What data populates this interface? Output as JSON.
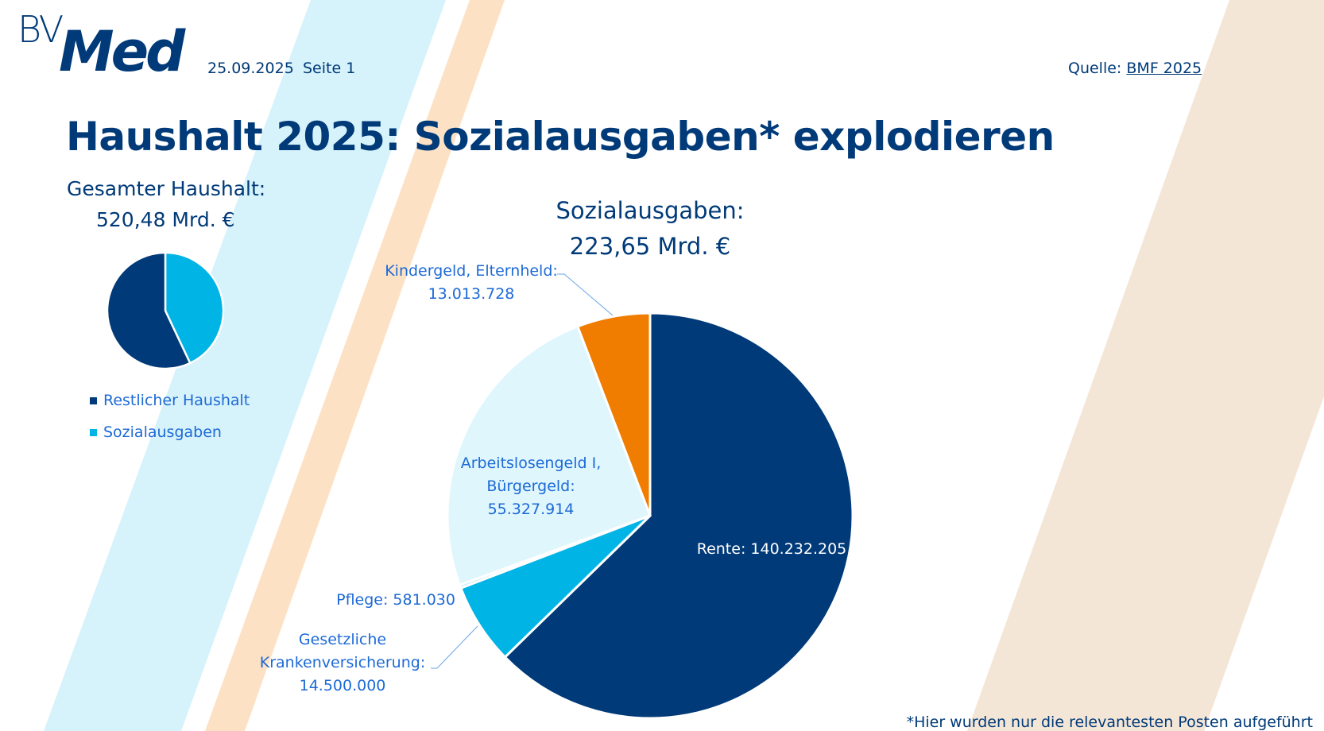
{
  "header": {
    "logo_text_top": "BV",
    "logo_text_main": "Med",
    "date": "25.09.2025",
    "page": "Seite 1",
    "source_label": "Quelle:",
    "source_link": "BMF 2025"
  },
  "title": "Haushalt 2025: Sozialausgaben* explodieren",
  "footnote": "*Hier wurden nur die relevantesten Posten aufgeführt",
  "colors": {
    "dark": "#003a78",
    "cyan": "#00b4e6",
    "light": "#dff6fd",
    "orange": "#f07d00",
    "label": "#1d6ad6"
  },
  "chart_data": [
    {
      "type": "pie",
      "title_line1": "Gesamter Haushalt:",
      "title_line2": "520,48 Mrd. €",
      "unit": "Mrd. €",
      "slices": [
        {
          "name": "Sozialausgaben",
          "value": 223.65,
          "color": "#00b4e6"
        },
        {
          "name": "Restlicher Haushalt",
          "value": 296.83,
          "color": "#003a78"
        }
      ],
      "legend": [
        "Restlicher Haushalt",
        "Sozialausgaben"
      ],
      "legend_position": "bottom-left"
    },
    {
      "type": "pie",
      "title_line1": "Sozialausgaben:",
      "title_line2": "223,65 Mrd. €",
      "slices": [
        {
          "name": "Rente",
          "label": "Rente: 140.232.205",
          "value": 140232205,
          "color": "#003a78"
        },
        {
          "name": "Gesetzliche Krankenversicherung",
          "label_lines": [
            "Gesetzliche",
            "Krankenversicherung:",
            "14.500.000"
          ],
          "value": 14500000,
          "color": "#00b4e6"
        },
        {
          "name": "Pflege",
          "label": "Pflege: 581.030",
          "value": 581030,
          "color": "#bfe9f8"
        },
        {
          "name": "Arbeitslosengeld I, Bürgergeld",
          "label_lines": [
            "Arbeitslosengeld I,",
            "Bürgergeld:",
            "55.327.914"
          ],
          "value": 55327914,
          "color": "#dff6fd"
        },
        {
          "name": "Kindergeld, Elternheld",
          "label_lines": [
            "Kindergeld, Elternheld:",
            "13.013.728"
          ],
          "value": 13013728,
          "color": "#f07d00"
        }
      ]
    }
  ]
}
